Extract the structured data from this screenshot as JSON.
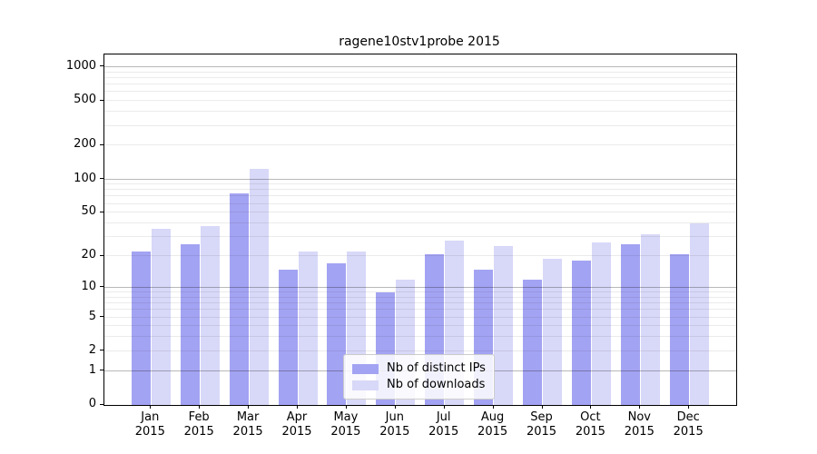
{
  "chart_data": {
    "type": "bar",
    "title": "ragene10stv1probe 2015",
    "categories": [
      "Jan",
      "Feb",
      "Mar",
      "Apr",
      "May",
      "Jun",
      "Jul",
      "Aug",
      "Sep",
      "Oct",
      "Nov",
      "Dec"
    ],
    "year_label": "2015",
    "series": [
      {
        "name": "Nb of distinct IPs",
        "color": "#a3a3f3",
        "values": [
          22,
          26,
          75,
          15,
          17,
          9,
          21,
          15,
          12,
          18,
          26,
          21
        ]
      },
      {
        "name": "Nb of downloads",
        "color": "#d8d8f8",
        "values": [
          36,
          38,
          123,
          22,
          22,
          12,
          28,
          25,
          19,
          27,
          32,
          40
        ]
      }
    ],
    "xlabel": "",
    "ylabel": "",
    "yscale": "log1p",
    "yticks": [
      0,
      1,
      2,
      5,
      10,
      20,
      50,
      100,
      200,
      500,
      1000
    ],
    "major_grid_values": [
      1,
      10,
      100,
      1000
    ],
    "minor_grid_values": [
      2,
      3,
      4,
      5,
      6,
      7,
      8,
      9,
      20,
      30,
      40,
      50,
      60,
      70,
      80,
      90,
      200,
      300,
      400,
      500,
      600,
      700,
      800,
      900
    ],
    "ylim": [
      0,
      1300
    ],
    "grid": true,
    "legend_position": "lower-center"
  }
}
